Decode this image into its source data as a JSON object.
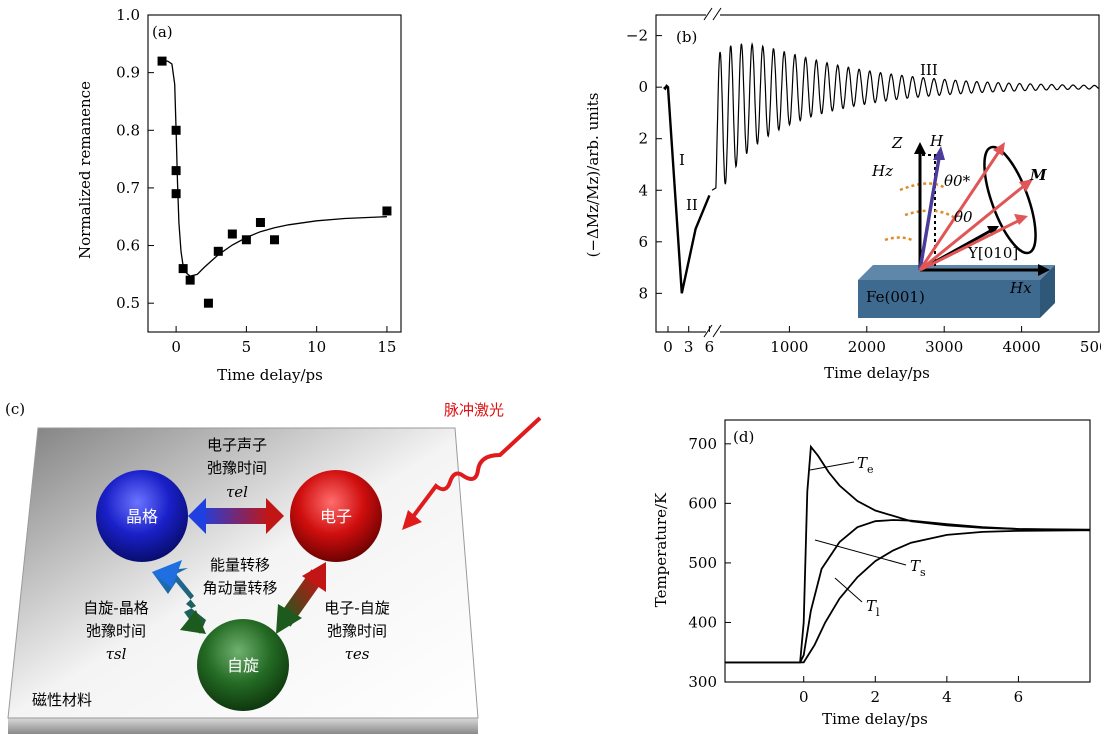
{
  "chart_data": [
    {
      "panel": "(a)",
      "type": "scatter",
      "xlabel": "Time delay/ps",
      "ylabel": "Normalized remanence",
      "xlim": [
        -2,
        16
      ],
      "ylim": [
        0.45,
        1.0
      ],
      "xticks": [
        0,
        5,
        10,
        15
      ],
      "yticks": [
        0.5,
        0.6,
        0.7,
        0.8,
        0.9,
        1.0
      ],
      "ytick_labels": [
        "0.5",
        "0.6",
        "0.7",
        "0.8",
        "0.9",
        "1.0"
      ],
      "series": [
        {
          "kind": "points",
          "x": [
            -1.0,
            0.0,
            0.0,
            0.0,
            0.5,
            1.0,
            2.3,
            3.0,
            4.0,
            5.0,
            6.0,
            7.0,
            15.0
          ],
          "y": [
            0.92,
            0.8,
            0.73,
            0.69,
            0.56,
            0.54,
            0.5,
            0.59,
            0.62,
            0.61,
            0.64,
            0.61,
            0.66
          ]
        },
        {
          "kind": "fit",
          "x": [
            -1.2,
            -0.6,
            -0.3,
            -0.1,
            0.0,
            0.1,
            0.2,
            0.35,
            0.5,
            0.7,
            1.0,
            1.5,
            2.0,
            3.0,
            4.0,
            5.0,
            6.0,
            7.0,
            8.0,
            10.0,
            12.0,
            15.0
          ],
          "y": [
            0.92,
            0.92,
            0.915,
            0.88,
            0.8,
            0.71,
            0.64,
            0.59,
            0.565,
            0.553,
            0.547,
            0.55,
            0.562,
            0.584,
            0.601,
            0.614,
            0.624,
            0.631,
            0.636,
            0.643,
            0.647,
            0.65
          ]
        }
      ]
    },
    {
      "panel": "(b)",
      "type": "line",
      "xlabel": "Time delay/ps",
      "ylabel": "(−ΔMz/Mz)/arb. units",
      "ylim": [
        -2.8,
        9.5
      ],
      "y_inverted": true,
      "yticks": [
        -2,
        0,
        2,
        4,
        6,
        8
      ],
      "ytick_labels": [
        "−2",
        "0",
        "2",
        "4",
        "6",
        "8"
      ],
      "x_broken_axis": true,
      "xticks_short": [
        "0",
        "3",
        "6"
      ],
      "xticks_long": [
        1000,
        2000,
        3000,
        4000,
        5000
      ],
      "region_labels": [
        "I",
        "II",
        "III"
      ],
      "regions": {
        "I": {
          "t_ps": [
            0.0,
            1.0,
            2.0
          ],
          "y": [
            0.0,
            4.0,
            8.0
          ]
        },
        "II": {
          "t_ps": [
            2.0,
            4.0,
            6.0
          ],
          "y": [
            8.0,
            5.5,
            4.2
          ]
        },
        "III": {
          "oscillation_start_ps": 50,
          "initial_amplitude": 2.9,
          "decay_to_ps": 5000,
          "final_value": 0
        }
      },
      "inset": {
        "labels": [
          "Z",
          "H",
          "Hz",
          "θ0*",
          "θ0",
          "M",
          "Y[010]",
          "Hx",
          "Fe(001)"
        ]
      }
    },
    {
      "panel": "(c)",
      "type": "diagram",
      "light_label": "脉冲激光",
      "material_label": "磁性材料",
      "nodes": {
        "lattice": "晶格",
        "electron": "电子",
        "spin": "自旋"
      },
      "center_line1": "能量转移",
      "center_line2": "角动量转移",
      "el_line1": "电子声子",
      "el_line2": "弛豫时间",
      "tau_el": "τel",
      "sl_line1": "自旋-晶格",
      "sl_line2": "弛豫时间",
      "tau_sl": "τsl",
      "es_line1": "电子-自旋",
      "es_line2": "弛豫时间",
      "tau_es": "τes"
    },
    {
      "panel": "(d)",
      "type": "line",
      "xlabel": "Time delay/ps",
      "ylabel": "Temperature/K",
      "xlim": [
        -2.2,
        8
      ],
      "ylim": [
        300,
        740
      ],
      "xticks": [
        0,
        2,
        4,
        6
      ],
      "yticks": [
        300,
        400,
        500,
        600,
        700
      ],
      "series": [
        {
          "name": "Te",
          "x": [
            -2.2,
            -0.1,
            0.0,
            0.1,
            0.2,
            0.4,
            0.7,
            1.0,
            1.5,
            2.0,
            3.0,
            4.0,
            5.0,
            6.0,
            8.0
          ],
          "y": [
            333,
            333,
            400,
            620,
            695,
            680,
            652,
            630,
            604,
            588,
            570,
            563,
            559,
            557,
            556
          ]
        },
        {
          "name": "Ts",
          "x": [
            -2.2,
            -0.1,
            0.0,
            0.2,
            0.5,
            1.0,
            1.5,
            2.0,
            2.5,
            3.0,
            4.0,
            5.0,
            6.0,
            8.0
          ],
          "y": [
            333,
            333,
            345,
            420,
            490,
            535,
            560,
            570,
            572,
            571,
            565,
            560,
            557,
            555
          ]
        },
        {
          "name": "Tl",
          "x": [
            -2.2,
            0.0,
            0.3,
            0.6,
            1.0,
            1.5,
            2.0,
            2.5,
            3.0,
            4.0,
            5.0,
            6.0,
            8.0
          ],
          "y": [
            333,
            333,
            362,
            400,
            440,
            476,
            503,
            521,
            534,
            547,
            552,
            554,
            555
          ]
        }
      ],
      "series_labels": {
        "Te": "e",
        "Ts": "s",
        "Tl": "l"
      }
    }
  ]
}
